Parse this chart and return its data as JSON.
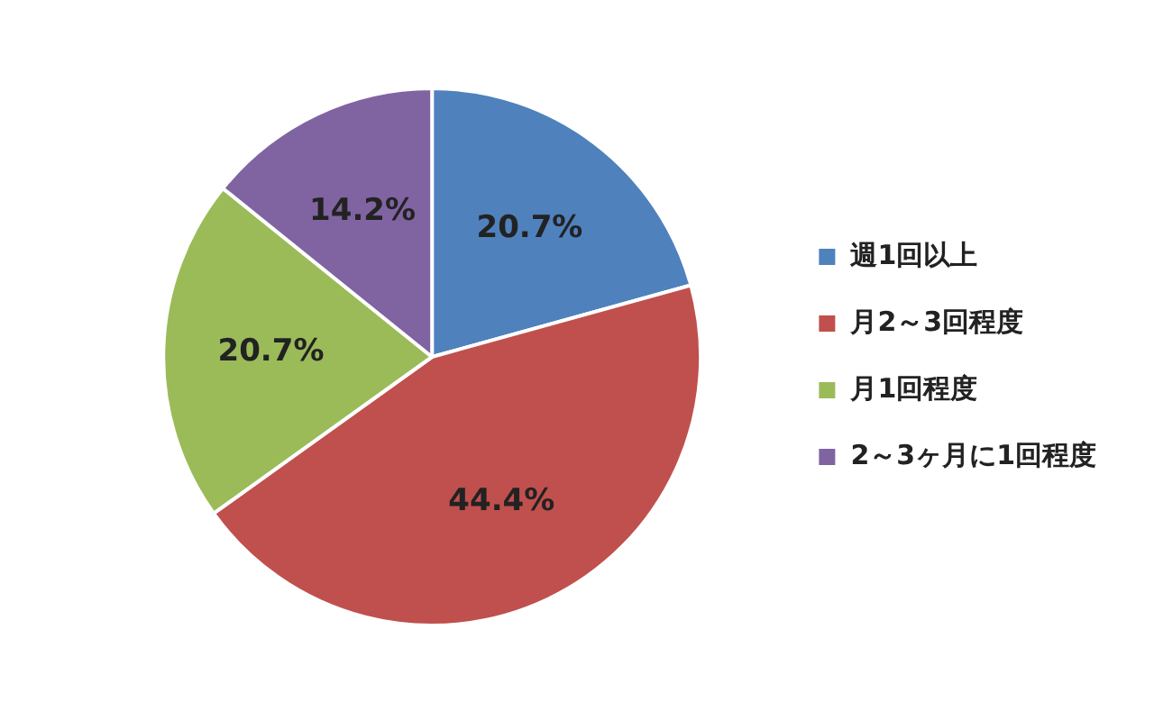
{
  "chart_data": {
    "type": "pie",
    "categories": [
      "週1回以上",
      "月2～3回程度",
      "月1回程度",
      "2～3ヶ月に1回程度"
    ],
    "values": [
      20.7,
      44.4,
      20.7,
      14.2
    ],
    "colors": [
      "#4f81bd",
      "#c0504d",
      "#9bbb59",
      "#8064a2"
    ],
    "value_labels": [
      "20.7%",
      "44.4%",
      "20.7%",
      "14.2%"
    ],
    "legend": "right"
  }
}
